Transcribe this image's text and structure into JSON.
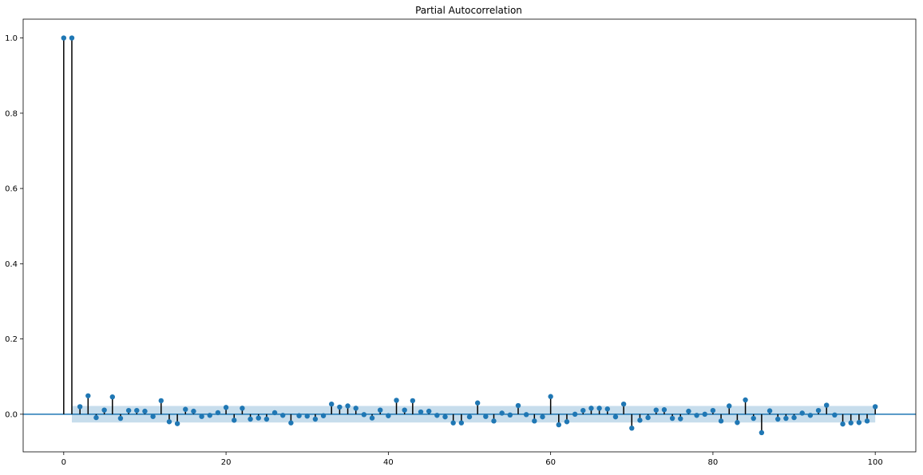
{
  "chart_data": {
    "type": "scatter",
    "title": "Partial Autocorrelation",
    "xlabel": "",
    "ylabel": "",
    "xlim": [
      -5,
      105
    ],
    "ylim": [
      -0.1,
      1.05
    ],
    "xticks": [
      0,
      20,
      40,
      60,
      80,
      100
    ],
    "xtick_labels": [
      "0",
      "20",
      "40",
      "60",
      "80",
      "100"
    ],
    "yticks": [
      0.0,
      0.2,
      0.4,
      0.6,
      0.8,
      1.0
    ],
    "ytick_labels": [
      "0.0",
      "0.2",
      "0.4",
      "0.6",
      "0.8",
      "1.0"
    ],
    "grid": false,
    "confidence_band": 0.022,
    "colors": {
      "marker": "#1f77b4",
      "stem": "#000000",
      "baseline": "#1f77b4",
      "band": "#1f77b4"
    },
    "lags": [
      0,
      1,
      2,
      3,
      4,
      5,
      6,
      7,
      8,
      9,
      10,
      11,
      12,
      13,
      14,
      15,
      16,
      17,
      18,
      19,
      20,
      21,
      22,
      23,
      24,
      25,
      26,
      27,
      28,
      29,
      30,
      31,
      32,
      33,
      34,
      35,
      36,
      37,
      38,
      39,
      40,
      41,
      42,
      43,
      44,
      45,
      46,
      47,
      48,
      49,
      50,
      51,
      52,
      53,
      54,
      55,
      56,
      57,
      58,
      59,
      60,
      61,
      62,
      63,
      64,
      65,
      66,
      67,
      68,
      69,
      70,
      71,
      72,
      73,
      74,
      75,
      76,
      77,
      78,
      79,
      80,
      81,
      82,
      83,
      84,
      85,
      86,
      87,
      88,
      89,
      90,
      91,
      92,
      93,
      94,
      95,
      96,
      97,
      98,
      99,
      100
    ],
    "values": [
      1.0,
      1.0,
      0.02,
      0.049,
      -0.009,
      0.011,
      0.046,
      -0.011,
      0.01,
      0.01,
      0.008,
      -0.006,
      0.036,
      -0.02,
      -0.025,
      0.013,
      0.008,
      -0.006,
      -0.003,
      0.004,
      0.018,
      -0.016,
      0.016,
      -0.013,
      -0.01,
      -0.013,
      0.004,
      -0.003,
      -0.023,
      -0.004,
      -0.005,
      -0.013,
      -0.004,
      0.027,
      0.019,
      0.022,
      0.016,
      -0.001,
      -0.01,
      0.011,
      -0.004,
      0.037,
      0.011,
      0.036,
      0.006,
      0.008,
      -0.003,
      -0.007,
      -0.023,
      -0.023,
      -0.007,
      0.03,
      -0.006,
      -0.018,
      0.003,
      -0.002,
      0.023,
      -0.001,
      -0.018,
      -0.007,
      0.047,
      -0.028,
      -0.02,
      0.0,
      0.01,
      0.016,
      0.016,
      0.014,
      -0.007,
      0.027,
      -0.037,
      -0.016,
      -0.009,
      0.011,
      0.012,
      -0.011,
      -0.012,
      0.008,
      -0.003,
      0.0,
      0.01,
      -0.018,
      0.022,
      -0.022,
      0.038,
      -0.011,
      -0.049,
      0.009,
      -0.013,
      -0.011,
      -0.009,
      0.003,
      -0.003,
      0.01,
      0.024,
      -0.002,
      -0.026,
      -0.023,
      -0.022,
      -0.018,
      0.02
    ]
  }
}
